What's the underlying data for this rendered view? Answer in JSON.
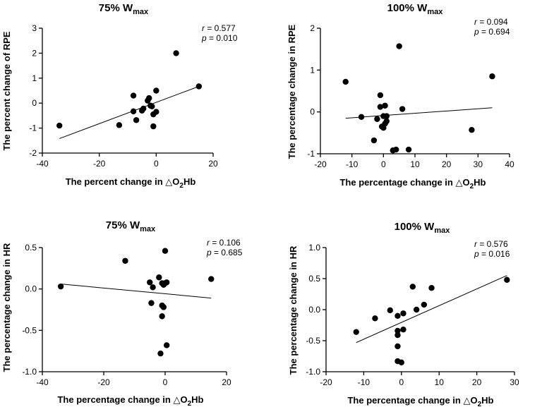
{
  "figure": {
    "description_free": true
  },
  "chart_data": [
    {
      "type": "scatter",
      "title": {
        "main": "75% W",
        "sub": "max"
      },
      "xlabel": {
        "pre": "The percent change in △O",
        "sub": "2",
        "post": "Hb"
      },
      "ylabel": "The percent change of RPE",
      "xlim": [
        -40,
        20
      ],
      "ylim": [
        -2,
        3
      ],
      "xticks": [
        -40,
        -20,
        0,
        20
      ],
      "yticks": [
        -2,
        -1,
        0,
        1,
        2,
        3
      ],
      "xtick_labels": [
        "-40",
        "-20",
        "0",
        "20"
      ],
      "ytick_labels": [
        "-2",
        "-1",
        "0",
        "1",
        "2",
        "3"
      ],
      "stats": {
        "r_label": "r",
        "r_value": " = 0.577",
        "p_label": "p",
        "p_value": " = 0.010"
      },
      "fit_line": {
        "x": [
          -34,
          15
        ],
        "y": [
          -1.42,
          0.67
        ]
      },
      "points": [
        {
          "x": -34,
          "y": -0.9
        },
        {
          "x": -13,
          "y": -0.88
        },
        {
          "x": -8,
          "y": 0.3
        },
        {
          "x": -8,
          "y": -0.33
        },
        {
          "x": -7,
          "y": -0.68
        },
        {
          "x": -5,
          "y": -0.3
        },
        {
          "x": -4.5,
          "y": -0.22
        },
        {
          "x": -3,
          "y": 0.1
        },
        {
          "x": -2.5,
          "y": 0.2
        },
        {
          "x": -2,
          "y": -0.1
        },
        {
          "x": -1.5,
          "y": -0.13
        },
        {
          "x": -1,
          "y": -0.45
        },
        {
          "x": -1,
          "y": -0.93
        },
        {
          "x": 0,
          "y": -0.35
        },
        {
          "x": 0,
          "y": 0.5
        },
        {
          "x": 7,
          "y": 2.0
        },
        {
          "x": 15,
          "y": 0.67
        }
      ]
    },
    {
      "type": "scatter",
      "title": {
        "main": "100% W",
        "sub": "max"
      },
      "xlabel": {
        "pre": "The percentage change in △O",
        "sub": "2",
        "post": "Hb"
      },
      "ylabel": "The percentage change in RPE",
      "xlim": [
        -20,
        40
      ],
      "ylim": [
        -1,
        2
      ],
      "xticks": [
        -20,
        -10,
        0,
        10,
        20,
        30,
        40
      ],
      "yticks": [
        -1,
        0,
        1,
        2
      ],
      "xtick_labels": [
        "-20",
        "-10",
        "0",
        "10",
        "20",
        "30",
        "40"
      ],
      "ytick_labels": [
        "-1",
        "0",
        "1",
        "2"
      ],
      "stats": {
        "r_label": "r",
        "r_value": " = 0.094",
        "p_label": "p",
        "p_value": " = 0.694"
      },
      "fit_line": {
        "x": [
          -12,
          34.5
        ],
        "y": [
          -0.15,
          0.1
        ]
      },
      "points": [
        {
          "x": -12,
          "y": 0.72
        },
        {
          "x": -7,
          "y": -0.12
        },
        {
          "x": -3,
          "y": -0.68
        },
        {
          "x": -2,
          "y": -0.17
        },
        {
          "x": -1,
          "y": 0.4
        },
        {
          "x": -1,
          "y": 0.12
        },
        {
          "x": -0.5,
          "y": -0.35
        },
        {
          "x": 0,
          "y": -0.1
        },
        {
          "x": 0,
          "y": -0.38
        },
        {
          "x": 0.5,
          "y": 0.15
        },
        {
          "x": 0.5,
          "y": -0.28
        },
        {
          "x": 1,
          "y": -0.22
        },
        {
          "x": 1,
          "y": -0.1
        },
        {
          "x": 3,
          "y": -0.92
        },
        {
          "x": 4,
          "y": -0.9
        },
        {
          "x": 5,
          "y": 1.57
        },
        {
          "x": 6,
          "y": 0.07
        },
        {
          "x": 8,
          "y": -0.9
        },
        {
          "x": 28,
          "y": -0.43
        },
        {
          "x": 34.5,
          "y": 0.85
        }
      ]
    },
    {
      "type": "scatter",
      "title": {
        "main": "75% W",
        "sub": "max"
      },
      "xlabel": {
        "pre": "The percentage change in △O",
        "sub": "2",
        "post": "Hb"
      },
      "ylabel": "The percentage change in HR",
      "xlim": [
        -40,
        20
      ],
      "ylim": [
        -1.0,
        0.5
      ],
      "xticks": [
        -40,
        -20,
        0,
        20
      ],
      "yticks": [
        -1.0,
        -0.5,
        0.0,
        0.5
      ],
      "xtick_labels": [
        "-40",
        "-20",
        "0",
        "20"
      ],
      "ytick_labels": [
        "-1.0",
        "-0.5",
        "0.0",
        "0.5"
      ],
      "stats": {
        "r_label": "r",
        "r_value": " = 0.106",
        "p_label": "p",
        "p_value": " = 0.685"
      },
      "fit_line": {
        "x": [
          -34,
          15
        ],
        "y": [
          0.06,
          -0.11
        ]
      },
      "points": [
        {
          "x": -34,
          "y": 0.03
        },
        {
          "x": -13,
          "y": 0.34
        },
        {
          "x": -5,
          "y": 0.08
        },
        {
          "x": -4.5,
          "y": -0.17
        },
        {
          "x": -4,
          "y": 0.02
        },
        {
          "x": -2,
          "y": 0.14
        },
        {
          "x": -1.5,
          "y": -0.78
        },
        {
          "x": -1,
          "y": 0.07
        },
        {
          "x": -1,
          "y": -0.2
        },
        {
          "x": -0.5,
          "y": -0.22
        },
        {
          "x": -1,
          "y": -0.33
        },
        {
          "x": -0.5,
          "y": 0.05
        },
        {
          "x": 0,
          "y": 0.46
        },
        {
          "x": 0,
          "y": 0.07
        },
        {
          "x": 0.5,
          "y": -0.68
        },
        {
          "x": 0.5,
          "y": 0.08
        },
        {
          "x": 15,
          "y": 0.12
        }
      ]
    },
    {
      "type": "scatter",
      "title": {
        "main": "100% W",
        "sub": "max"
      },
      "xlabel": {
        "pre": "The percentage change in △O",
        "sub": "2",
        "post": "Hb"
      },
      "ylabel": "The percentage change in HR",
      "xlim": [
        -20,
        30
      ],
      "ylim": [
        -1.0,
        1.0
      ],
      "xticks": [
        -20,
        -10,
        0,
        10,
        20,
        30
      ],
      "yticks": [
        -1.0,
        -0.5,
        0.0,
        0.5,
        1.0
      ],
      "xtick_labels": [
        "-20",
        "-10",
        "0",
        "10",
        "20",
        "30"
      ],
      "ytick_labels": [
        "-1.0",
        "-0.5",
        "0.0",
        "0.5",
        "1.0"
      ],
      "stats": {
        "r_label": "r",
        "r_value": " = 0.576",
        "p_label": "p",
        "p_value": " = 0.016"
      },
      "fit_line": {
        "x": [
          -12,
          28
        ],
        "y": [
          -0.53,
          0.55
        ]
      },
      "points": [
        {
          "x": -12,
          "y": -0.36
        },
        {
          "x": -7,
          "y": -0.14
        },
        {
          "x": -3,
          "y": -0.01
        },
        {
          "x": -1,
          "y": -0.1
        },
        {
          "x": -1,
          "y": -0.34
        },
        {
          "x": -1,
          "y": -0.41
        },
        {
          "x": -1,
          "y": -0.59
        },
        {
          "x": -1,
          "y": -0.83
        },
        {
          "x": 0,
          "y": -0.85
        },
        {
          "x": 0.5,
          "y": -0.06
        },
        {
          "x": 0.5,
          "y": -0.32
        },
        {
          "x": 3,
          "y": 0.37
        },
        {
          "x": 4,
          "y": 0.0
        },
        {
          "x": 6,
          "y": 0.08
        },
        {
          "x": 8,
          "y": 0.35
        },
        {
          "x": 28,
          "y": 0.48
        }
      ]
    }
  ]
}
